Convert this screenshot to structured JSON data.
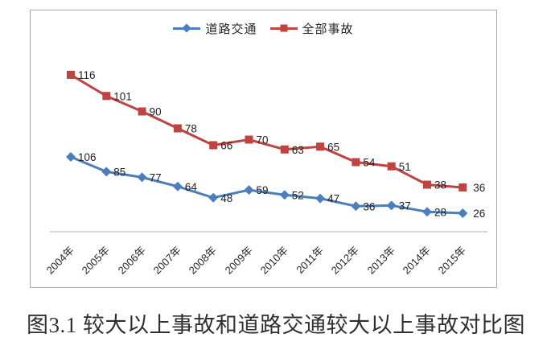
{
  "figure": {
    "caption": "图3.1 较大以上事故和道路交通较大以上事故对比图",
    "background": "#ffffff",
    "frame_border_color": "#a9a9a9",
    "caption_color": "#303030"
  },
  "chart_data": {
    "type": "line",
    "title": "",
    "xlabel": "",
    "ylabel": "",
    "categories": [
      "2004年",
      "2005年",
      "2006年",
      "2007年",
      "2008年",
      "2009年",
      "2010年",
      "2011年",
      "2012年",
      "2013年",
      "2014年",
      "2015年"
    ],
    "series": [
      {
        "key": "road-traffic",
        "name": "道路交通",
        "marker": "diamond",
        "color": "#4a7ebd",
        "values": [
          106,
          85,
          77,
          64,
          48,
          59,
          52,
          47,
          36,
          37,
          28,
          26
        ]
      },
      {
        "key": "all-accidents",
        "name": "全部事故",
        "marker": "square",
        "color": "#bf4340",
        "values": [
          116,
          101,
          90,
          78,
          66,
          70,
          63,
          65,
          54,
          51,
          38,
          36
        ]
      }
    ],
    "legend_position": "top-center",
    "data_labels": true,
    "grid": false,
    "y_axis_visible": false,
    "x_axis_line_color": "#b0b0b0",
    "data_label_color": "#1f1f1f",
    "tick_label_color": "#262626"
  }
}
